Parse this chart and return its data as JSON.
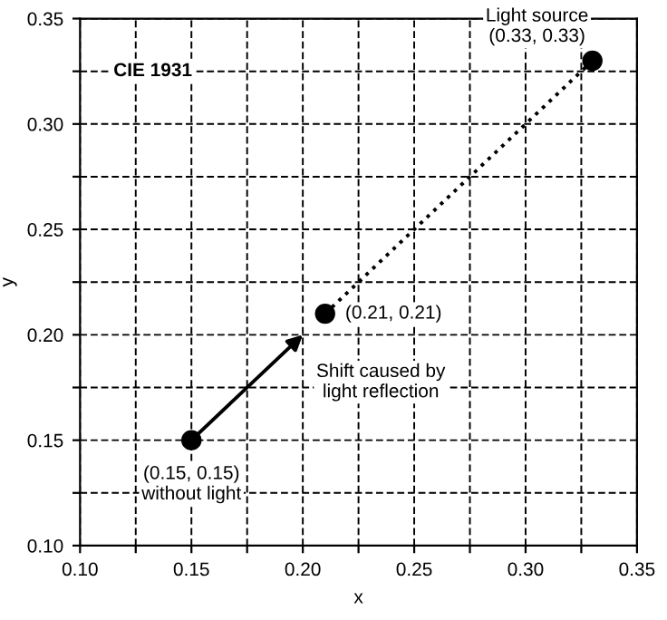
{
  "chart_data": {
    "type": "scatter",
    "xlabel": "x",
    "ylabel": "y",
    "xlim": [
      0.1,
      0.35
    ],
    "ylim": [
      0.1,
      0.35
    ],
    "xticks": [
      {
        "value": 0.1,
        "label": "0.10"
      },
      {
        "value": 0.125,
        "label": null
      },
      0.15,
      {
        "value": 0.175,
        "label": null
      },
      {
        "value": 0.2,
        "label": "0.20"
      },
      {
        "value": 0.225,
        "label": null
      },
      0.25,
      {
        "value": 0.275,
        "label": null
      },
      {
        "value": 0.3,
        "label": "0.30"
      },
      {
        "value": 0.325,
        "label": null
      },
      0.35
    ],
    "yticks": [
      {
        "value": 0.1,
        "label": "0.10"
      },
      {
        "value": 0.125,
        "label": null
      },
      0.15,
      {
        "value": 0.175,
        "label": null
      },
      {
        "value": 0.2,
        "label": "0.20"
      },
      {
        "value": 0.225,
        "label": null
      },
      0.25,
      {
        "value": 0.275,
        "label": null
      },
      {
        "value": 0.3,
        "label": "0.30"
      },
      {
        "value": 0.325,
        "label": null
      },
      0.35
    ],
    "grid": true,
    "series": [
      {
        "type": "line",
        "color": "#000000",
        "x": [
          0.21,
          0.33
        ],
        "values": [
          0.21,
          0.33
        ],
        "line_style": "dotted"
      },
      {
        "color": "#000000",
        "x": [
          0.15,
          0.21,
          0.33
        ],
        "values": [
          0.15,
          0.21,
          0.33
        ],
        "marker": "circle"
      }
    ],
    "annotations": [
      "CIE 1931",
      {
        "text": "Light source\n(0.33, 0.33)",
        "x": 0.33,
        "y": 0.33
      },
      {
        "text": "(0.21, 0.21)",
        "x": 0.21,
        "y": 0.21
      },
      "Shift caused by\nlight reflection",
      {
        "text": "(0.15, 0.15)\nwithout light",
        "x": 0.15,
        "y": 0.15
      }
    ]
  }
}
